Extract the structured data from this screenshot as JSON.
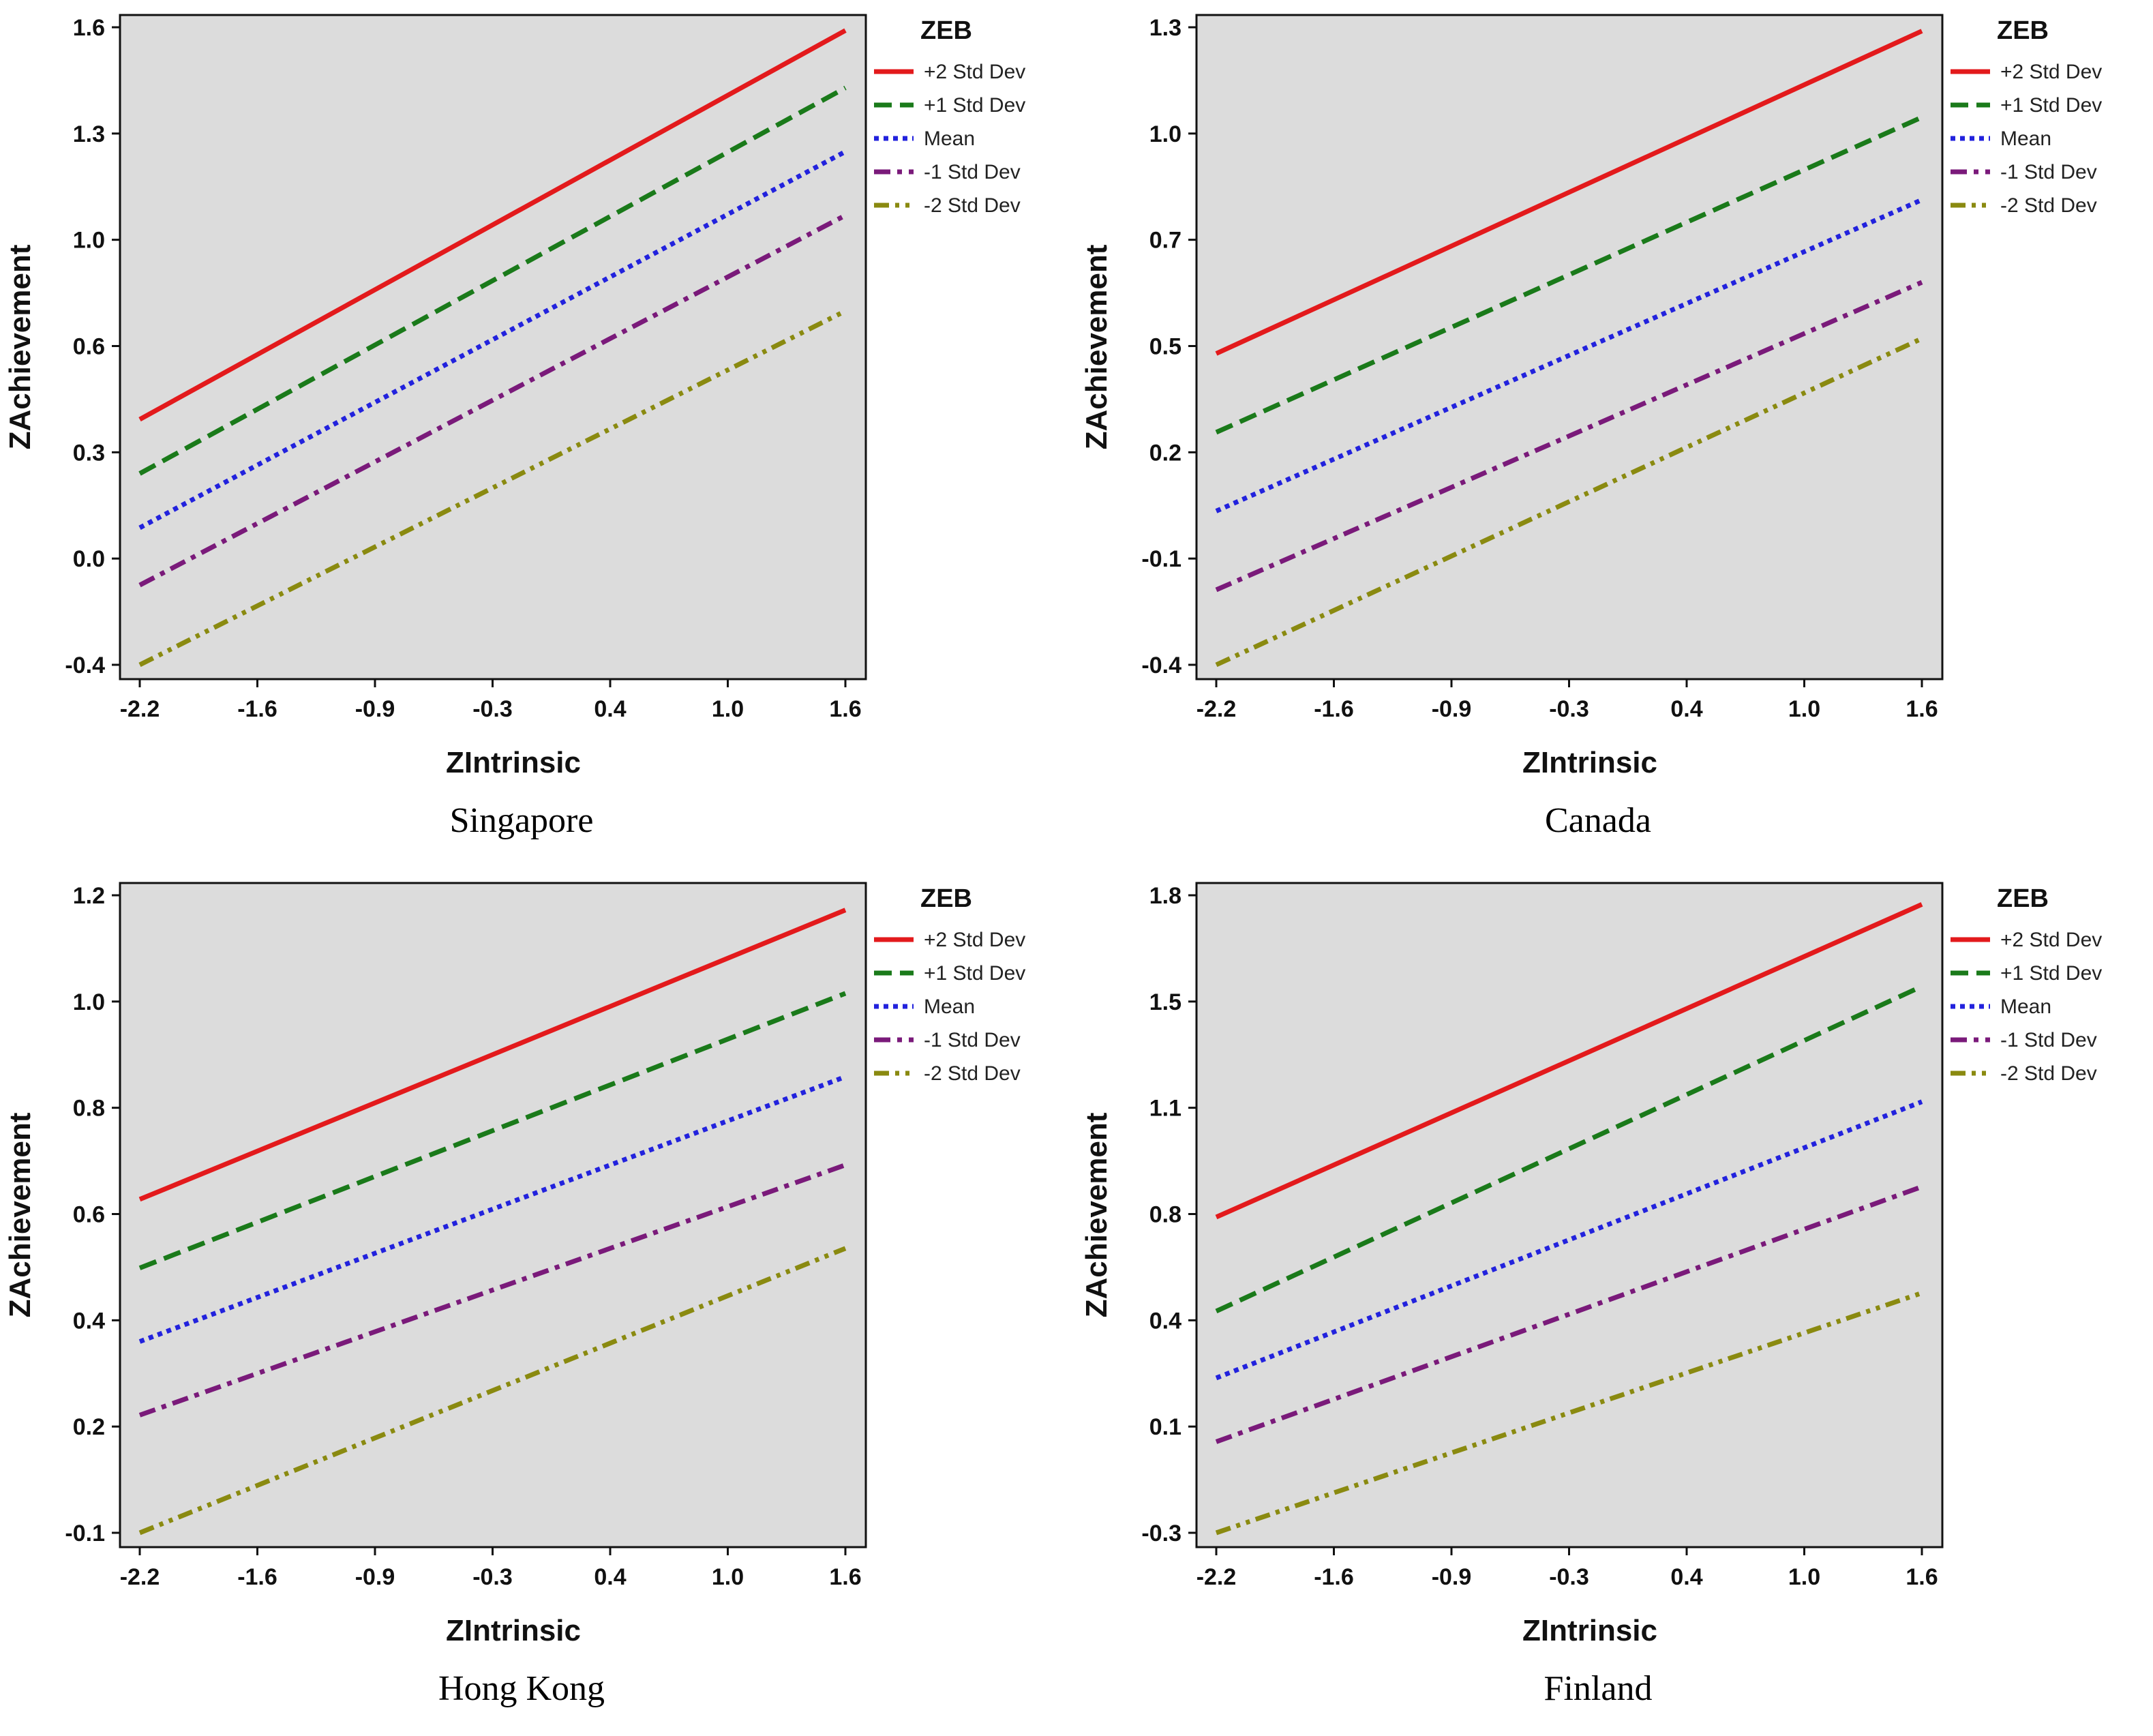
{
  "figure": {
    "xlabel": "ZIntrinsic",
    "ylabel": "ZAchievement",
    "legend_title": "ZEB"
  },
  "series_styles": [
    {
      "name": "+2 Std Dev",
      "color": "#e31a1c",
      "dash": "solid"
    },
    {
      "name": "+1 Std Dev",
      "color": "#1a7a1a",
      "dash": "dash"
    },
    {
      "name": "Mean",
      "color": "#2222dd",
      "dash": "dot"
    },
    {
      "name": "-1 Std Dev",
      "color": "#7a1a7a",
      "dash": "dashdot"
    },
    {
      "name": "-2 Std Dev",
      "color": "#8a8a10",
      "dash": "dashdotdot"
    }
  ],
  "chart_data": [
    {
      "type": "line",
      "title": "Singapore",
      "xlabel": "ZIntrinsic",
      "ylabel": "ZAchievement",
      "legend_title": "ZEB",
      "legend_position": "right",
      "x_ticks": [
        "-2.2",
        "-1.6",
        "-0.9",
        "-0.3",
        "0.4",
        "1.0",
        "1.6"
      ],
      "y_ticks": [
        "-0.4",
        "0.0",
        "0.3",
        "0.6",
        "1.0",
        "1.3",
        "1.6"
      ],
      "xlim": [
        -2.2,
        1.6
      ],
      "ylim": [
        -0.4,
        1.6
      ],
      "x": [
        -2.2,
        1.6
      ],
      "series": [
        {
          "name": "+2 Std Dev",
          "values": [
            0.37,
            1.59
          ]
        },
        {
          "name": "+1 Std Dev",
          "values": [
            0.2,
            1.41
          ]
        },
        {
          "name": "Mean",
          "values": [
            0.03,
            1.21
          ]
        },
        {
          "name": "-1 Std Dev",
          "values": [
            -0.15,
            1.01
          ]
        },
        {
          "name": "-2 Std Dev",
          "values": [
            -0.4,
            0.71
          ]
        }
      ]
    },
    {
      "type": "line",
      "title": "Canada",
      "xlabel": "ZIntrinsic",
      "ylabel": "ZAchievement",
      "legend_title": "ZEB",
      "legend_position": "right",
      "x_ticks": [
        "-2.2",
        "-1.6",
        "-0.9",
        "-0.3",
        "0.4",
        "1.0",
        "1.6"
      ],
      "y_ticks": [
        "-0.4",
        "-0.1",
        "0.2",
        "0.5",
        "0.7",
        "1.0",
        "1.3"
      ],
      "xlim": [
        -2.2,
        1.6
      ],
      "ylim": [
        -0.4,
        1.3
      ],
      "x": [
        -2.2,
        1.6
      ],
      "series": [
        {
          "name": "+2 Std Dev",
          "values": [
            0.43,
            1.29
          ]
        },
        {
          "name": "+1 Std Dev",
          "values": [
            0.22,
            1.06
          ]
        },
        {
          "name": "Mean",
          "values": [
            0.01,
            0.84
          ]
        },
        {
          "name": "-1 Std Dev",
          "values": [
            -0.2,
            0.62
          ]
        },
        {
          "name": "-2 Std Dev",
          "values": [
            -0.4,
            0.47
          ]
        }
      ]
    },
    {
      "type": "line",
      "title": "Hong Kong",
      "xlabel": "ZIntrinsic",
      "ylabel": "ZAchievement",
      "legend_title": "ZEB",
      "legend_position": "right",
      "x_ticks": [
        "-2.2",
        "-1.6",
        "-0.9",
        "-0.3",
        "0.4",
        "1.0",
        "1.6"
      ],
      "y_ticks": [
        "-0.1",
        "0.2",
        "0.4",
        "0.6",
        "0.8",
        "1.0",
        "1.2"
      ],
      "xlim": [
        -2.2,
        1.6
      ],
      "ylim": [
        -0.1,
        1.2
      ],
      "x": [
        -2.2,
        1.6
      ],
      "series": [
        {
          "name": "+2 Std Dev",
          "values": [
            0.58,
            1.17
          ]
        },
        {
          "name": "+1 Std Dev",
          "values": [
            0.44,
            1.0
          ]
        },
        {
          "name": "Mean",
          "values": [
            0.29,
            0.83
          ]
        },
        {
          "name": "-1 Std Dev",
          "values": [
            0.14,
            0.65
          ]
        },
        {
          "name": "-2 Std Dev",
          "values": [
            -0.1,
            0.48
          ]
        }
      ]
    },
    {
      "type": "line",
      "title": "Finland",
      "xlabel": "ZIntrinsic",
      "ylabel": "ZAchievement",
      "legend_title": "ZEB",
      "legend_position": "right",
      "x_ticks": [
        "-2.2",
        "-1.6",
        "-0.9",
        "-0.3",
        "0.4",
        "1.0",
        "1.6"
      ],
      "y_ticks": [
        "-0.3",
        "0.1",
        "0.4",
        "0.8",
        "1.1",
        "1.5",
        "1.8"
      ],
      "xlim": [
        -2.2,
        1.6
      ],
      "ylim": [
        -0.3,
        1.8
      ],
      "x": [
        -2.2,
        1.6
      ],
      "series": [
        {
          "name": "+2 Std Dev",
          "values": [
            0.74,
            1.77
          ]
        },
        {
          "name": "+1 Std Dev",
          "values": [
            0.43,
            1.5
          ]
        },
        {
          "name": "Mean",
          "values": [
            0.21,
            1.12
          ]
        },
        {
          "name": "-1 Std Dev",
          "values": [
            0.0,
            0.84
          ]
        },
        {
          "name": "-2 Std Dev",
          "values": [
            -0.3,
            0.49
          ]
        }
      ]
    }
  ]
}
